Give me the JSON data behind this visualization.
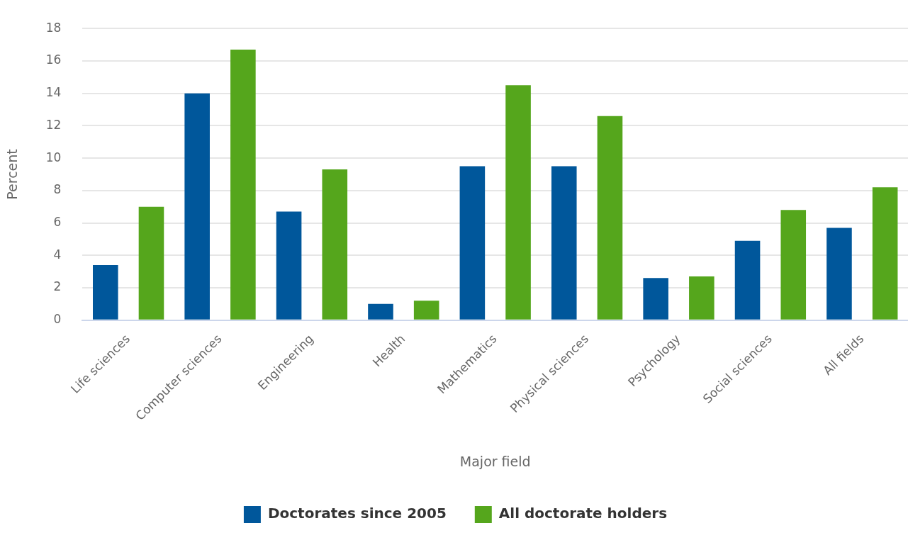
{
  "chart_data": {
    "type": "bar",
    "xlabel": "Major field",
    "ylabel": "Percent",
    "categories": [
      "Life sciences",
      "Computer sciences",
      "Engineering",
      "Health",
      "Mathematics",
      "Physical sciences",
      "Psychology",
      "Social sciences",
      "All fields"
    ],
    "series": [
      {
        "name": "Doctorates since 2005",
        "color": "#00579b",
        "values": [
          3.4,
          14.0,
          6.7,
          1.0,
          9.5,
          9.5,
          2.6,
          4.9,
          5.7
        ]
      },
      {
        "name": "All doctorate holders",
        "color": "#55a61c",
        "values": [
          7.0,
          16.7,
          9.3,
          1.2,
          14.5,
          12.6,
          2.7,
          6.8,
          8.2
        ]
      }
    ],
    "ylim": [
      0,
      18
    ],
    "yticks": [
      0,
      2,
      4,
      6,
      8,
      10,
      12,
      14,
      16,
      18
    ],
    "grid": "y",
    "legend": "bottom"
  }
}
